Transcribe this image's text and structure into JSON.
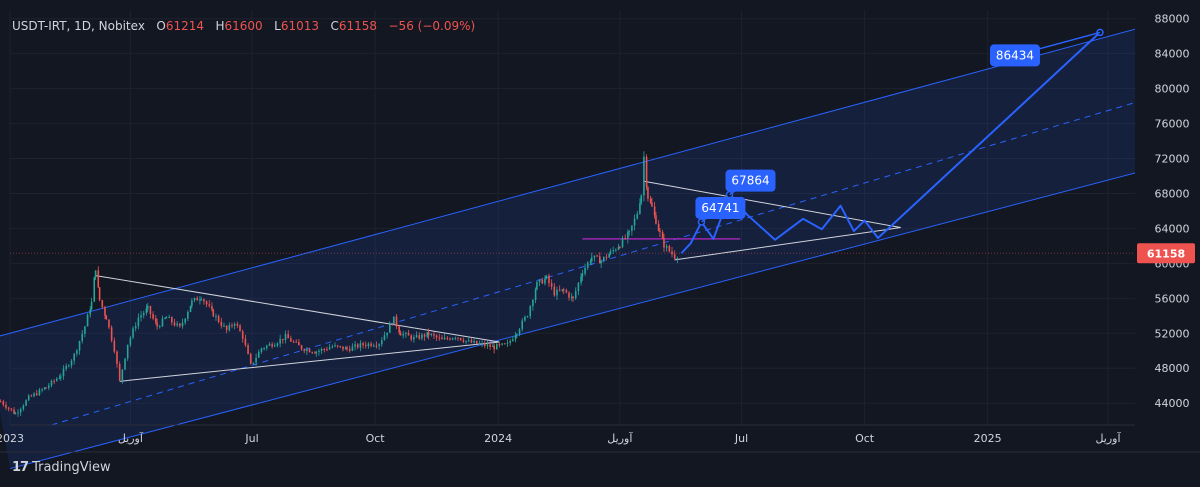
{
  "legend": {
    "symbol": "USDT-IRT, 1D, Nobitex",
    "o_label": "O",
    "o_value": "61214",
    "h_label": "H",
    "h_value": "61600",
    "l_label": "L",
    "l_value": "61013",
    "c_label": "C",
    "c_value": "61158",
    "change": "−56 (−0.09%)"
  },
  "footer": {
    "brand": "TradingView",
    "logo": "17"
  },
  "colors": {
    "background": "#131722",
    "up": "#26a69a",
    "down": "#ef5350",
    "channel": "#2962ff",
    "projection": "#2962ff",
    "callout": "#2962ff",
    "price_tag": "#ef5350",
    "hline": "#9c27b0"
  },
  "chart_data": {
    "type": "line",
    "title": "",
    "xlabel": "",
    "ylabel": "",
    "ylim": [
      41500,
      89000
    ],
    "y_ticks": [
      44000,
      48000,
      52000,
      56000,
      60000,
      64000,
      68000,
      72000,
      76000,
      80000,
      84000,
      88000
    ],
    "x_ticks": [
      {
        "date": "2023-01-01",
        "label": "2023"
      },
      {
        "date": "2023-04-01",
        "label": "آوریل"
      },
      {
        "date": "2023-07-01",
        "label": "Jul"
      },
      {
        "date": "2023-10-01",
        "label": "Oct"
      },
      {
        "date": "2024-01-01",
        "label": "2024"
      },
      {
        "date": "2024-04-01",
        "label": "آوریل"
      },
      {
        "date": "2024-07-01",
        "label": "Jul"
      },
      {
        "date": "2024-10-01",
        "label": "Oct"
      },
      {
        "date": "2025-01-01",
        "label": "2025"
      },
      {
        "date": "2025-04-01",
        "label": "آوریل"
      }
    ],
    "last_price": 61158,
    "last_price_label": "61158",
    "series": [
      {
        "kind": "price",
        "points": [
          [
            "2022-12-25",
            44200
          ],
          [
            "2023-01-05",
            42800
          ],
          [
            "2023-01-15",
            44600
          ],
          [
            "2023-01-28",
            45800
          ],
          [
            "2023-02-08",
            47200
          ],
          [
            "2023-02-18",
            49500
          ],
          [
            "2023-02-26",
            52800
          ],
          [
            "2023-03-03",
            55500
          ],
          [
            "2023-03-06",
            59500
          ],
          [
            "2023-03-09",
            55800
          ],
          [
            "2023-03-14",
            53800
          ],
          [
            "2023-03-20",
            50200
          ],
          [
            "2023-03-24",
            46500
          ],
          [
            "2023-03-30",
            50800
          ],
          [
            "2023-04-07",
            53800
          ],
          [
            "2023-04-14",
            54800
          ],
          [
            "2023-04-21",
            52800
          ],
          [
            "2023-04-28",
            53800
          ],
          [
            "2023-05-08",
            52600
          ],
          [
            "2023-05-17",
            55600
          ],
          [
            "2023-05-24",
            56200
          ],
          [
            "2023-06-02",
            54200
          ],
          [
            "2023-06-12",
            52300
          ],
          [
            "2023-06-18",
            53300
          ],
          [
            "2023-06-24",
            51600
          ],
          [
            "2023-06-30",
            48300
          ],
          [
            "2023-07-08",
            50300
          ],
          [
            "2023-07-18",
            50900
          ],
          [
            "2023-07-26",
            51600
          ],
          [
            "2023-08-07",
            50300
          ],
          [
            "2023-08-18",
            49900
          ],
          [
            "2023-08-30",
            50500
          ],
          [
            "2023-09-10",
            50200
          ],
          [
            "2023-09-22",
            50700
          ],
          [
            "2023-10-04",
            50900
          ],
          [
            "2023-10-10",
            52300
          ],
          [
            "2023-10-15",
            53600
          ],
          [
            "2023-10-20",
            52000
          ],
          [
            "2023-10-30",
            51400
          ],
          [
            "2023-11-10",
            51900
          ],
          [
            "2023-11-20",
            51200
          ],
          [
            "2023-11-30",
            51700
          ],
          [
            "2023-12-10",
            51000
          ],
          [
            "2023-12-20",
            50700
          ],
          [
            "2023-12-29",
            50400
          ],
          [
            "2024-01-08",
            50700
          ],
          [
            "2024-01-15",
            52200
          ],
          [
            "2024-01-23",
            54200
          ],
          [
            "2024-01-30",
            57600
          ],
          [
            "2024-02-06",
            58300
          ],
          [
            "2024-02-12",
            56600
          ],
          [
            "2024-02-19",
            56900
          ],
          [
            "2024-02-26",
            55900
          ],
          [
            "2024-03-04",
            59100
          ],
          [
            "2024-03-11",
            60700
          ],
          [
            "2024-03-18",
            60300
          ],
          [
            "2024-03-25",
            61200
          ],
          [
            "2024-04-01",
            62200
          ],
          [
            "2024-04-08",
            63400
          ],
          [
            "2024-04-14",
            65800
          ],
          [
            "2024-04-17",
            67900
          ],
          [
            "2024-04-19",
            72200
          ],
          [
            "2024-04-22",
            67600
          ],
          [
            "2024-04-25",
            66400
          ],
          [
            "2024-04-28",
            64900
          ],
          [
            "2024-05-01",
            63400
          ],
          [
            "2024-05-04",
            62100
          ],
          [
            "2024-05-08",
            61400
          ],
          [
            "2024-05-12",
            60800
          ],
          [
            "2024-05-16",
            61158
          ]
        ]
      },
      {
        "kind": "projection",
        "points": [
          [
            "2024-05-17",
            61158
          ],
          [
            "2024-05-24",
            62300
          ],
          [
            "2024-06-01",
            64741
          ],
          [
            "2024-06-10",
            62800
          ],
          [
            "2024-06-22",
            67864
          ],
          [
            "2024-07-05",
            65600
          ],
          [
            "2024-07-26",
            62700
          ],
          [
            "2024-08-16",
            65100
          ],
          [
            "2024-08-30",
            63900
          ],
          [
            "2024-09-13",
            66600
          ],
          [
            "2024-09-23",
            63700
          ],
          [
            "2024-10-01",
            64900
          ],
          [
            "2024-10-11",
            62900
          ],
          [
            "2024-10-21",
            64300
          ],
          [
            "2025-03-26",
            86434
          ]
        ]
      }
    ],
    "annotations": [
      {
        "date": "2024-06-01",
        "value": 64741,
        "label": "64741"
      },
      {
        "date": "2024-06-22",
        "value": 67864,
        "label": "67864"
      },
      {
        "date": "2025-03-26",
        "value": 86434,
        "label": "86434"
      }
    ],
    "channel": {
      "upper": [
        [
          "2022-12-15",
          51300
        ],
        [
          "2025-05-25",
          88200
        ]
      ],
      "lower": [
        [
          "2023-05-05",
          41500
        ],
        [
          "2025-05-25",
          71700
        ]
      ],
      "middle": [
        [
          "2023-02-01",
          41500
        ],
        [
          "2025-05-25",
          79950
        ]
      ]
    },
    "trendlines": [
      [
        [
          "2023-03-06",
          58600
        ],
        [
          "2024-01-02",
          51000
        ]
      ],
      [
        [
          "2023-03-24",
          46500
        ],
        [
          "2024-01-02",
          51000
        ]
      ],
      [
        [
          "2024-04-19",
          69400
        ],
        [
          "2024-10-28",
          64100
        ]
      ],
      [
        [
          "2024-05-12",
          60400
        ],
        [
          "2024-10-28",
          64100
        ]
      ]
    ],
    "horizontal_line": {
      "from": "2024-03-04",
      "to": "2024-06-30",
      "value": 62800
    }
  }
}
